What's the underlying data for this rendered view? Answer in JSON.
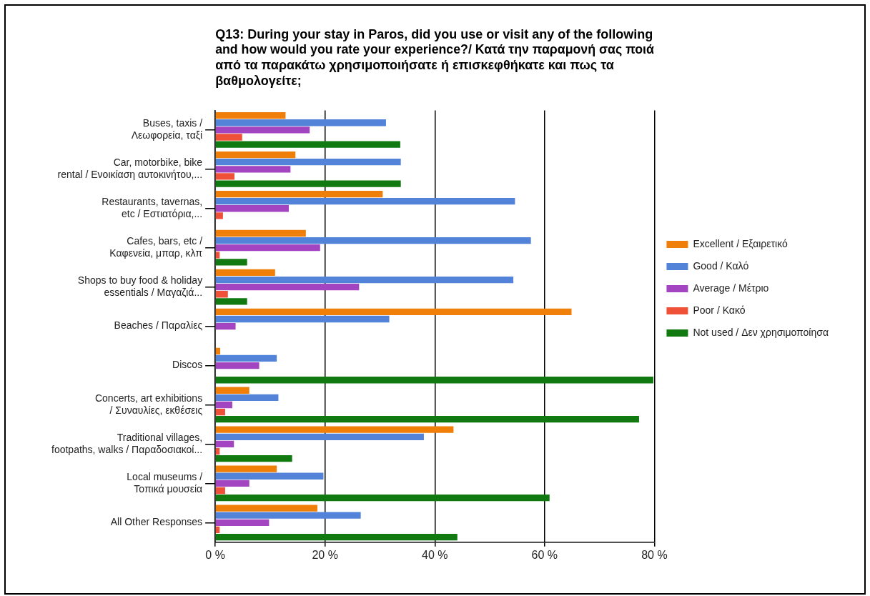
{
  "chart_data": {
    "type": "bar",
    "orientation": "horizontal",
    "title": "Q13: During your stay in Paros, did you use or visit any of the following\nand how would you rate your experience?/ Κατά την παραμονή σας ποιά\nαπό τα παρακάτω χρησιμοποιήσατε ή επισκεφθήκατε και πως τα\nβαθμολογείτε;",
    "categories": [
      "Buses, taxis /\nΛεωφορεία, ταξί",
      "Car, motorbike, bike\nrental / Ενοικίαση αυτοκινήτου,...",
      "Restaurants, tavernas,\netc / Εστιατόρια,...",
      "Cafes, bars, etc /\nΚαφενεία, μπαρ, κλπ",
      "Shops to buy food & holiday\nessentials / Μαγαζιά...",
      "Beaches / Παραλίες",
      "Discos",
      "Concerts, art exhibitions\n/ Συναυλίες, εκθέσεις",
      "Traditional villages,\nfootpaths, walks / Παραδοσιακοί...",
      "Local museums /\nΤοπικά μουσεία",
      "All Other Responses"
    ],
    "series": [
      {
        "name": "Excellent / Εξαιρετικό",
        "color": "#f07f09",
        "values": [
          12.8,
          14.6,
          30.5,
          16.5,
          10.9,
          64.9,
          0.9,
          6.2,
          43.4,
          11.2,
          18.6
        ]
      },
      {
        "name": "Good / Καλό",
        "color": "#5283d8",
        "values": [
          31.1,
          33.8,
          54.6,
          57.5,
          54.3,
          31.7,
          11.2,
          11.5,
          38.0,
          19.7,
          26.5
        ]
      },
      {
        "name": "Average / Μέτριο",
        "color": "#a344c0",
        "values": [
          17.2,
          13.7,
          13.4,
          19.1,
          26.2,
          3.7,
          8.0,
          3.1,
          3.4,
          6.2,
          9.8
        ]
      },
      {
        "name": "Poor / Κακό",
        "color": "#ef5138",
        "values": [
          4.9,
          3.5,
          1.4,
          0.8,
          2.3,
          null,
          null,
          1.8,
          0.8,
          1.8,
          0.8
        ]
      },
      {
        "name": "Not used / Δεν χρησιμοποίησα",
        "color": "#107a10",
        "values": [
          33.7,
          33.8,
          null,
          5.8,
          5.8,
          null,
          79.8,
          77.2,
          14.0,
          60.9,
          44.1
        ]
      }
    ],
    "xlim": [
      0,
      80
    ],
    "xticks": [
      {
        "value": 0,
        "label": "0 %"
      },
      {
        "value": 20,
        "label": "20 %"
      },
      {
        "value": 40,
        "label": "40 %"
      },
      {
        "value": 60,
        "label": "60 %"
      },
      {
        "value": 80,
        "label": "80 %"
      }
    ],
    "grid": "x",
    "legend": "right"
  }
}
